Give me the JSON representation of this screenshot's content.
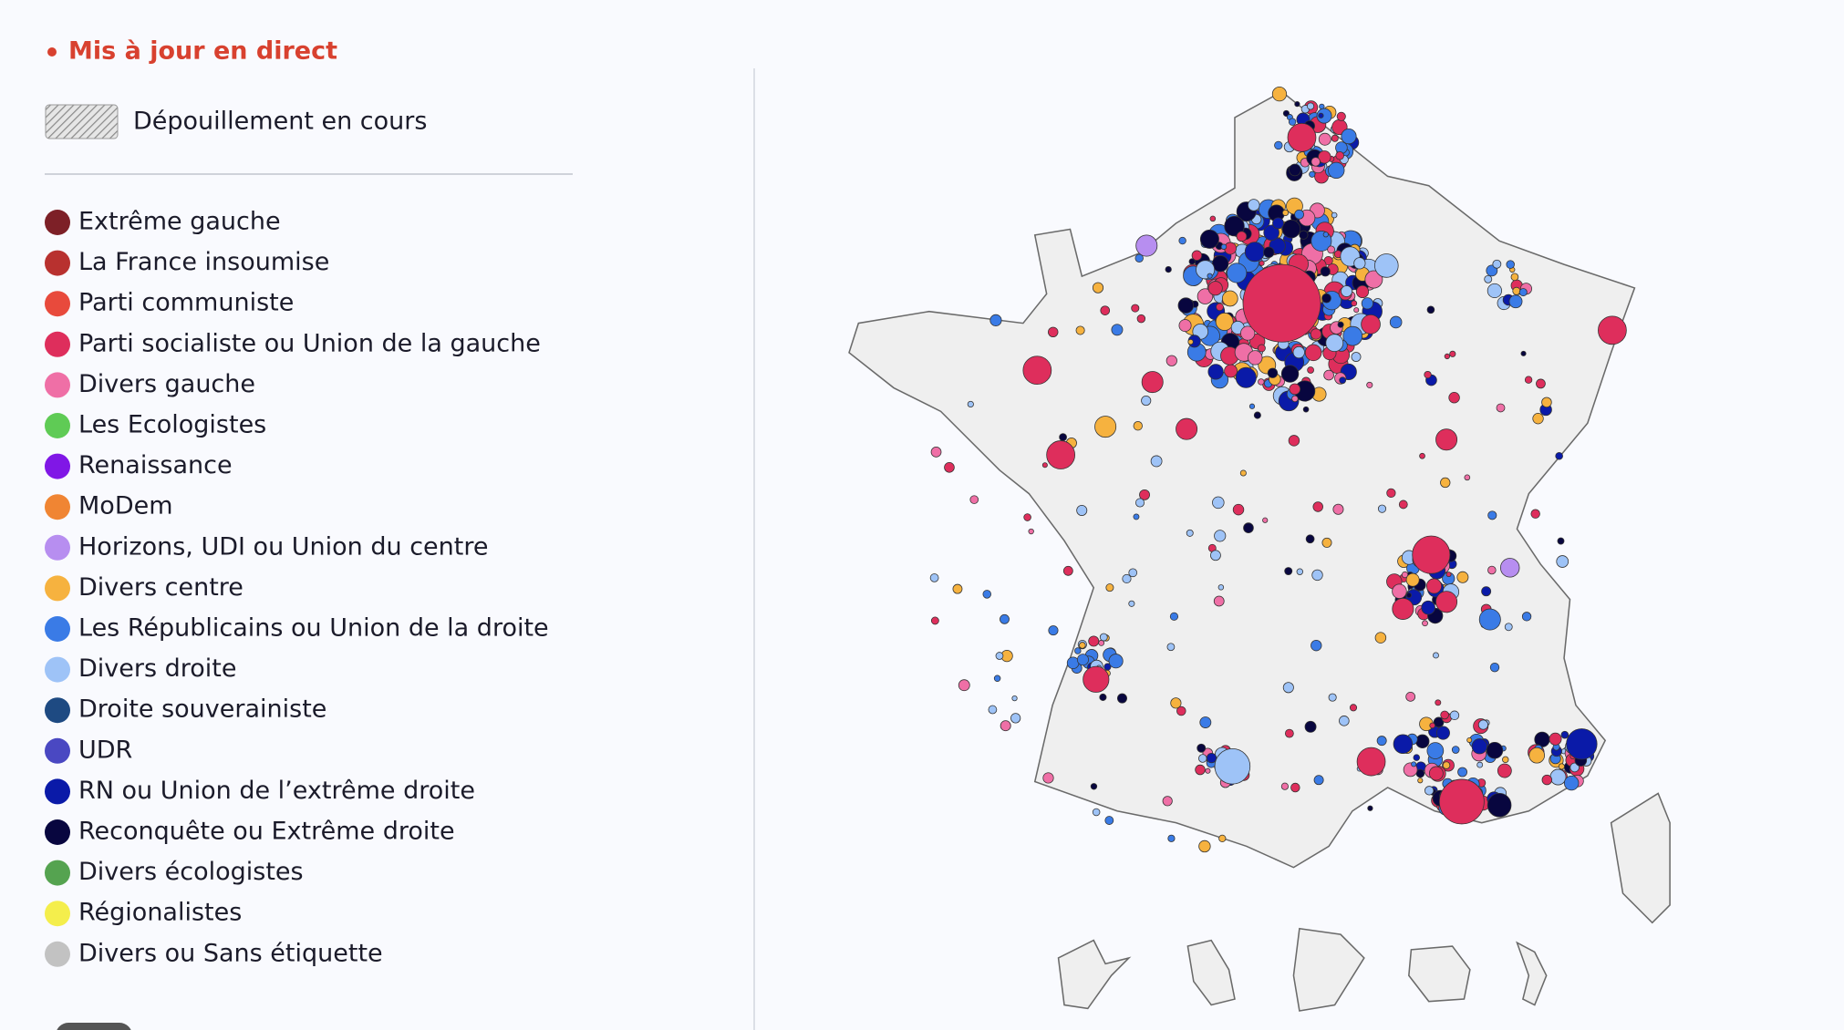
{
  "status": "Mis à jour en direct",
  "counting": "Dépouillement en cours",
  "legend": {
    "items": [
      {
        "label": "Extrême gauche",
        "color": "#7d2027"
      },
      {
        "label": "La France insoumise",
        "color": "#b8312f"
      },
      {
        "label": "Parti communiste",
        "color": "#e84a3c"
      },
      {
        "label": "Parti socialiste ou Union de la gauche",
        "color": "#de2e5c"
      },
      {
        "label": "Divers gauche",
        "color": "#ef6fa6"
      },
      {
        "label": "Les Ecologistes",
        "color": "#5fcb55"
      },
      {
        "label": "Renaissance",
        "color": "#8017e6"
      },
      {
        "label": "MoDem",
        "color": "#f08533"
      },
      {
        "label": "Horizons, UDI ou Union du centre",
        "color": "#b78ef0"
      },
      {
        "label": "Divers centre",
        "color": "#f6b23f"
      },
      {
        "label": "Les Républicains ou Union de la droite",
        "color": "#3a7be6"
      },
      {
        "label": "Divers droite",
        "color": "#9ec3f7"
      },
      {
        "label": "Droite souverainiste",
        "color": "#1e4a82"
      },
      {
        "label": "UDR",
        "color": "#4a48c2"
      },
      {
        "label": "RN ou Union de l’extrême droite",
        "color": "#0a1aa8"
      },
      {
        "label": "Reconquête ou Extrême droite",
        "color": "#08063f"
      },
      {
        "label": "Divers écologistes",
        "color": "#55a350"
      },
      {
        "label": "Régionalistes",
        "color": "#f4ee4c"
      },
      {
        "label": "Divers ou Sans étiquette",
        "color": "#c2c2c2"
      }
    ]
  }
}
